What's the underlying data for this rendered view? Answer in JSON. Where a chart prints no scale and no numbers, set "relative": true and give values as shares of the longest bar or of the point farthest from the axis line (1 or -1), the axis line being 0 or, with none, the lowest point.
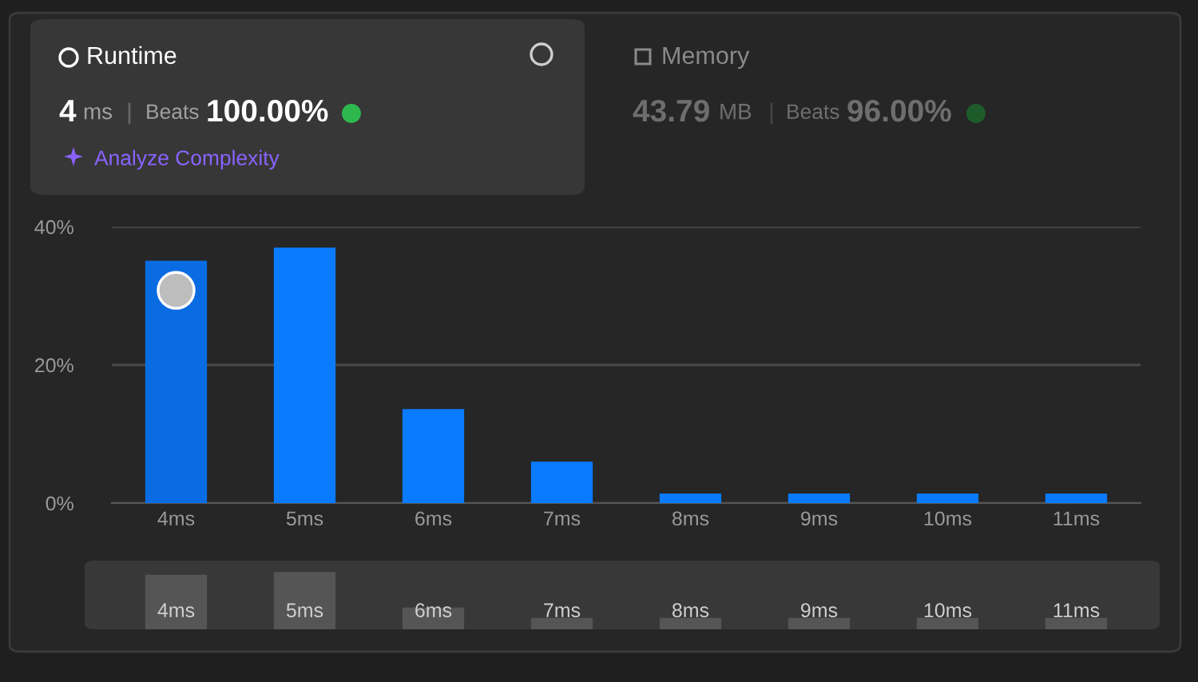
{
  "chart_data": [
    {
      "type": "other",
      "annotations": [
        "Runtime",
        "4",
        "ms",
        "Beats",
        "100.00%",
        "Analyze Complexity",
        "Memory",
        "43.79",
        "MB",
        "Beats",
        "96.00%"
      ]
    },
    {
      "type": "bar",
      "categories": [
        "4ms",
        "5ms",
        "6ms",
        "7ms",
        "8ms",
        "9ms",
        "10ms",
        "11ms"
      ],
      "values": [
        35.1,
        37.0,
        13.6,
        6.0,
        1.4,
        1.4,
        1.4,
        1.4
      ],
      "colors": [
        "#0a6ce2",
        "#0a7aff",
        "#0a7aff",
        "#0a7aff",
        "#0a7aff",
        "#0a7aff",
        "#0a7aff",
        "#0a7aff"
      ],
      "ylim": [
        0,
        40
      ],
      "yticks": [
        {
          "value": 0,
          "label": "0%"
        },
        {
          "value": 20,
          "label": "20%"
        },
        {
          "value": 40,
          "label": "40%"
        }
      ],
      "grid": "y"
    },
    {
      "type": "bar",
      "relative": true,
      "categories": [
        "4ms",
        "5ms",
        "6ms",
        "7ms",
        "8ms",
        "9ms",
        "10ms",
        "11ms"
      ],
      "values": [
        0.95,
        1,
        0.38,
        0.2,
        0.2,
        0.2,
        0.2,
        0.2
      ],
      "color": "#555555",
      "tick_labels": "x"
    }
  ]
}
